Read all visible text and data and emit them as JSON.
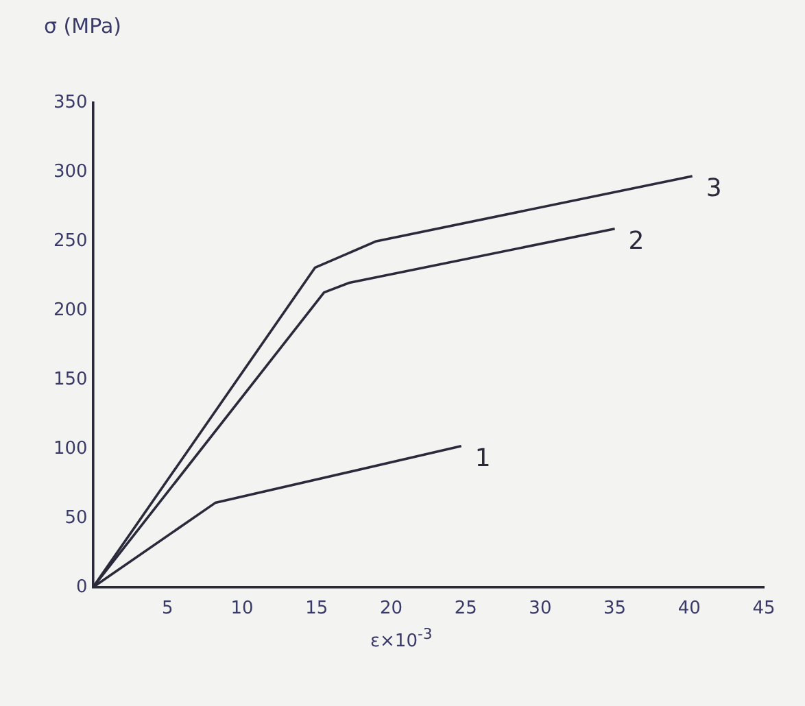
{
  "chart_data": {
    "type": "line",
    "xlabel": "ε×10$^{-3}$",
    "ylabel": "σ (MPa)",
    "xlim": [
      0,
      45
    ],
    "xticks": [
      {
        "value": 0,
        "label": null
      },
      5,
      10,
      15,
      20,
      25,
      30,
      35,
      40,
      45
    ],
    "ylim": [
      0,
      350
    ],
    "yticks": [
      0,
      50,
      100,
      150,
      200,
      250,
      300,
      350
    ],
    "grid": false,
    "legend": false,
    "marker": "none",
    "line_style": "solid",
    "series": [
      {
        "name": "1",
        "color": "#2b2a3a",
        "x": [
          0,
          8.2,
          24.7
        ],
        "values": [
          0,
          61,
          102
        ]
      },
      {
        "name": "2",
        "color": "#2b2a3a",
        "x": [
          0,
          15.5,
          17.2,
          35
        ],
        "values": [
          0,
          213,
          220,
          259
        ]
      },
      {
        "name": "3",
        "color": "#2b2a3a",
        "x": [
          0,
          14.9,
          19,
          40.2
        ],
        "values": [
          0,
          231,
          250,
          297
        ]
      }
    ]
  }
}
